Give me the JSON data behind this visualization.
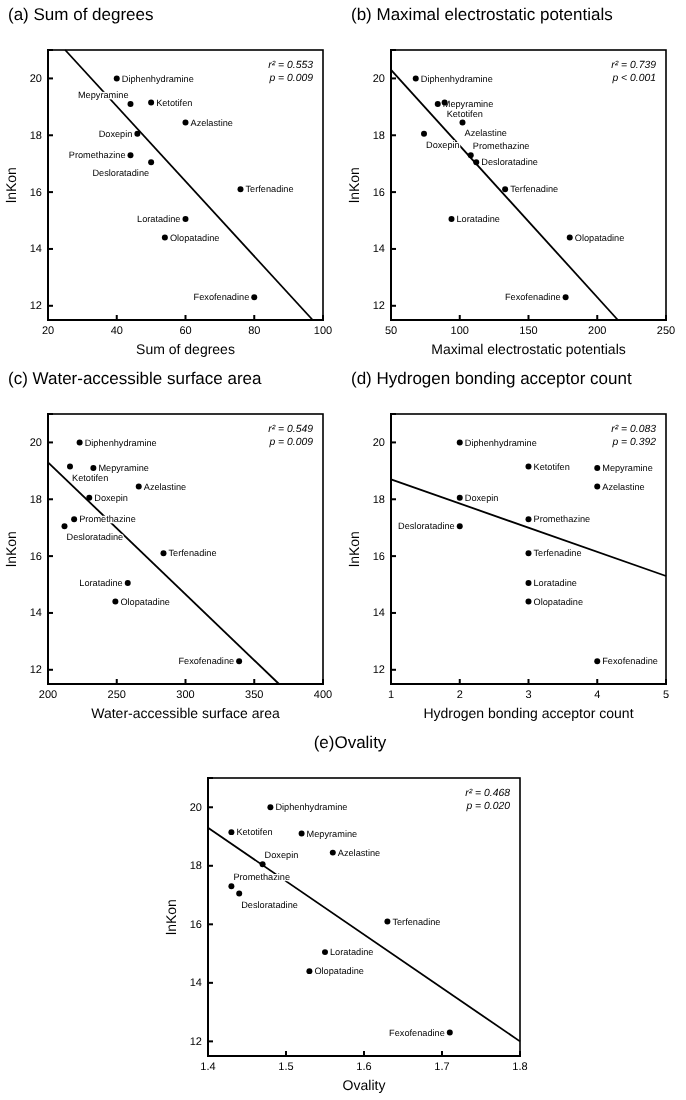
{
  "chart_data": [
    {
      "type": "scatter",
      "title": "(a) Sum of degrees",
      "xlabel": "Sum of degrees",
      "ylabel": "lnKon",
      "xlim": [
        20,
        100
      ],
      "xticks": [
        20,
        40,
        60,
        80,
        100
      ],
      "ylim": [
        11.5,
        21
      ],
      "yticks": [
        12,
        14,
        16,
        18,
        20
      ],
      "series": [
        {
          "type": "scatter",
          "marker": "circle",
          "color": "#000000",
          "x": [
            40,
            44,
            50,
            60,
            46,
            44,
            50,
            76,
            60,
            54,
            80
          ],
          "values": [
            20.0,
            19.1,
            19.15,
            18.45,
            18.05,
            17.3,
            17.05,
            16.1,
            15.05,
            14.4,
            12.3
          ]
        },
        {
          "type": "line",
          "color": "#000000",
          "x": [
            25,
            97
          ],
          "values": [
            21,
            11.5
          ]
        }
      ],
      "annotations": [
        "r² = 0.553",
        "p = 0.009",
        {
          "text": "Diphenhydramine",
          "x": 40,
          "y": 20.0
        },
        {
          "text": "Mepyramine",
          "x": 44,
          "y": 19.1
        },
        {
          "text": "Ketotifen",
          "x": 50,
          "y": 19.15
        },
        {
          "text": "Azelastine",
          "x": 60,
          "y": 18.45
        },
        {
          "text": "Doxepin",
          "x": 46,
          "y": 18.05
        },
        {
          "text": "Promethazine",
          "x": 44,
          "y": 17.3
        },
        {
          "text": "Desloratadine",
          "x": 50,
          "y": 17.05
        },
        {
          "text": "Terfenadine",
          "x": 76,
          "y": 16.1
        },
        {
          "text": "Loratadine",
          "x": 60,
          "y": 15.05
        },
        {
          "text": "Olopatadine",
          "x": 54,
          "y": 14.4
        },
        {
          "text": "Fexofenadine",
          "x": 80,
          "y": 12.3
        }
      ]
    },
    {
      "type": "scatter",
      "title": "(b) Maximal electrostatic potentials",
      "xlabel": "Maximal electrostatic potentials",
      "ylabel": "lnKon",
      "xlim": [
        50,
        250
      ],
      "xticks": [
        50,
        100,
        150,
        200,
        250
      ],
      "ylim": [
        11.5,
        21
      ],
      "yticks": [
        12,
        14,
        16,
        18,
        20
      ],
      "series": [
        {
          "type": "scatter",
          "marker": "circle",
          "color": "#000000",
          "x": [
            68,
            84,
            89,
            102,
            74,
            108,
            112,
            133,
            94,
            180,
            177
          ],
          "values": [
            20.0,
            19.1,
            19.15,
            18.45,
            18.05,
            17.3,
            17.05,
            16.1,
            15.05,
            14.4,
            12.3
          ]
        },
        {
          "type": "line",
          "color": "#000000",
          "x": [
            50,
            215
          ],
          "values": [
            20.3,
            11.5
          ]
        }
      ],
      "annotations": [
        "r² = 0.739",
        "p < 0.001",
        {
          "text": "Diphenhydramine",
          "x": 68,
          "y": 20.0
        },
        {
          "text": "Mepyramine",
          "x": 84,
          "y": 19.1
        },
        {
          "text": "Ketotifen",
          "x": 89,
          "y": 19.15
        },
        {
          "text": "Azelastine",
          "x": 102,
          "y": 18.45
        },
        {
          "text": "Doxepin",
          "x": 74,
          "y": 18.05
        },
        {
          "text": "Promethazine",
          "x": 108,
          "y": 17.3
        },
        {
          "text": "Desloratadine",
          "x": 112,
          "y": 17.05
        },
        {
          "text": "Terfenadine",
          "x": 133,
          "y": 16.1
        },
        {
          "text": "Loratadine",
          "x": 94,
          "y": 15.05
        },
        {
          "text": "Olopatadine",
          "x": 180,
          "y": 14.4
        },
        {
          "text": "Fexofenadine",
          "x": 177,
          "y": 12.3
        }
      ]
    },
    {
      "type": "scatter",
      "title": "(c) Water-accessible surface area",
      "xlabel": "Water-accessible surface area",
      "ylabel": "lnKon",
      "xlim": [
        200,
        400
      ],
      "xticks": [
        200,
        250,
        300,
        350,
        400
      ],
      "ylim": [
        11.5,
        21
      ],
      "yticks": [
        12,
        14,
        16,
        18,
        20
      ],
      "series": [
        {
          "type": "scatter",
          "marker": "circle",
          "color": "#000000",
          "x": [
            223,
            233,
            216,
            266,
            230,
            219,
            212,
            284,
            258,
            249,
            339
          ],
          "values": [
            20.0,
            19.1,
            19.15,
            18.45,
            18.05,
            17.3,
            17.05,
            16.1,
            15.05,
            14.4,
            12.3
          ]
        },
        {
          "type": "line",
          "color": "#000000",
          "x": [
            200,
            368
          ],
          "values": [
            19.3,
            11.5
          ]
        }
      ],
      "annotations": [
        "r² = 0.549",
        "p = 0.009",
        {
          "text": "Diphenhydramine",
          "x": 223,
          "y": 20.0
        },
        {
          "text": "Mepyramine",
          "x": 233,
          "y": 19.1
        },
        {
          "text": "Ketotifen",
          "x": 216,
          "y": 19.15
        },
        {
          "text": "Azelastine",
          "x": 266,
          "y": 18.45
        },
        {
          "text": "Doxepin",
          "x": 230,
          "y": 18.05
        },
        {
          "text": "Promethazine",
          "x": 219,
          "y": 17.3
        },
        {
          "text": "Desloratadine",
          "x": 212,
          "y": 17.05
        },
        {
          "text": "Terfenadine",
          "x": 284,
          "y": 16.1
        },
        {
          "text": "Loratadine",
          "x": 258,
          "y": 15.05
        },
        {
          "text": "Olopatadine",
          "x": 249,
          "y": 14.4
        },
        {
          "text": "Fexofenadine",
          "x": 339,
          "y": 12.3
        }
      ]
    },
    {
      "type": "scatter",
      "title": "(d) Hydrogen bonding acceptor count",
      "xlabel": "Hydrogen bonding acceptor count",
      "ylabel": "lnKon",
      "xlim": [
        1,
        5
      ],
      "xticks": [
        1,
        2,
        3,
        4,
        5
      ],
      "ylim": [
        11.5,
        21
      ],
      "yticks": [
        12,
        14,
        16,
        18,
        20
      ],
      "series": [
        {
          "type": "scatter",
          "marker": "circle",
          "color": "#000000",
          "x": [
            2,
            4,
            3,
            4,
            2,
            3,
            2,
            3,
            3,
            3,
            4
          ],
          "values": [
            20.0,
            19.1,
            19.15,
            18.45,
            18.05,
            17.3,
            17.05,
            16.1,
            15.05,
            14.4,
            12.3
          ]
        },
        {
          "type": "line",
          "color": "#000000",
          "x": [
            1,
            5
          ],
          "values": [
            18.7,
            15.3
          ]
        }
      ],
      "annotations": [
        "r² = 0.083",
        "p = 0.392",
        {
          "text": "Diphenhydramine",
          "x": 2,
          "y": 20.0
        },
        {
          "text": "Mepyramine",
          "x": 4,
          "y": 19.1
        },
        {
          "text": "Ketotifen",
          "x": 3,
          "y": 19.15
        },
        {
          "text": "Azelastine",
          "x": 4,
          "y": 18.45
        },
        {
          "text": "Doxepin",
          "x": 2,
          "y": 18.05
        },
        {
          "text": "Promethazine",
          "x": 3,
          "y": 17.3
        },
        {
          "text": "Desloratadine",
          "x": 2,
          "y": 17.05
        },
        {
          "text": "Terfenadine",
          "x": 3,
          "y": 16.1
        },
        {
          "text": "Loratadine",
          "x": 3,
          "y": 15.05
        },
        {
          "text": "Olopatadine",
          "x": 3,
          "y": 14.4
        },
        {
          "text": "Fexofenadine",
          "x": 4,
          "y": 12.3
        }
      ]
    },
    {
      "type": "scatter",
      "title": "(e)Ovality",
      "xlabel": "Ovality",
      "ylabel": "lnKon",
      "xlim": [
        1.4,
        1.8
      ],
      "xticks": [
        1.4,
        1.5,
        1.6,
        1.7,
        1.8
      ],
      "ylim": [
        11.5,
        21
      ],
      "yticks": [
        12,
        14,
        16,
        18,
        20
      ],
      "series": [
        {
          "type": "scatter",
          "marker": "circle",
          "color": "#000000",
          "x": [
            1.48,
            1.52,
            1.43,
            1.56,
            1.47,
            1.43,
            1.44,
            1.63,
            1.55,
            1.53,
            1.71
          ],
          "values": [
            20.0,
            19.1,
            19.15,
            18.45,
            18.05,
            17.3,
            17.05,
            16.1,
            15.05,
            14.4,
            12.3
          ]
        },
        {
          "type": "line",
          "color": "#000000",
          "x": [
            1.4,
            1.8
          ],
          "values": [
            19.3,
            12.0
          ]
        }
      ],
      "annotations": [
        "r² = 0.468",
        "p = 0.020",
        {
          "text": "Diphenhydramine",
          "x": 1.48,
          "y": 20.0
        },
        {
          "text": "Mepyramine",
          "x": 1.52,
          "y": 19.1
        },
        {
          "text": "Ketotifen",
          "x": 1.43,
          "y": 19.15
        },
        {
          "text": "Azelastine",
          "x": 1.56,
          "y": 18.45
        },
        {
          "text": "Doxepin",
          "x": 1.47,
          "y": 18.05
        },
        {
          "text": "Promethazine",
          "x": 1.43,
          "y": 17.3
        },
        {
          "text": "Desloratadine",
          "x": 1.44,
          "y": 17.05
        },
        {
          "text": "Terfenadine",
          "x": 1.63,
          "y": 16.1
        },
        {
          "text": "Loratadine",
          "x": 1.55,
          "y": 15.05
        },
        {
          "text": "Olopatadine",
          "x": 1.53,
          "y": 14.4
        },
        {
          "text": "Fexofenadine",
          "x": 1.71,
          "y": 12.3
        }
      ]
    }
  ]
}
